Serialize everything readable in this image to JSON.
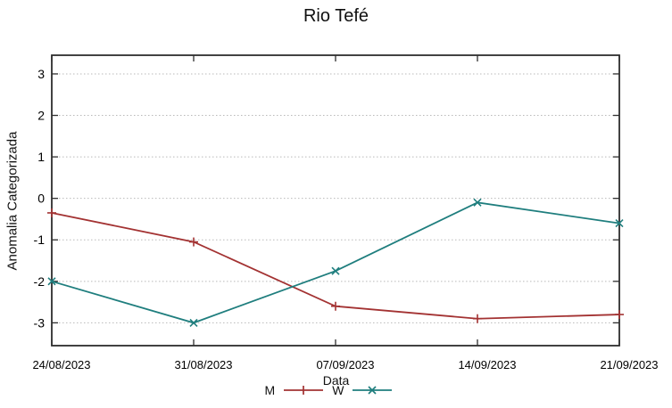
{
  "chart_data": {
    "type": "line",
    "title": "Rio Tefé",
    "xlabel": "Data",
    "ylabel": "Anomalia Categorizada",
    "categories": [
      "24/08/2023",
      "31/08/2023",
      "07/09/2023",
      "14/09/2023",
      "21/09/2023"
    ],
    "series": [
      {
        "name": "M",
        "color": "#a33232",
        "marker": "plus",
        "values": [
          -0.35,
          -1.05,
          -2.6,
          -2.9,
          -2.8
        ]
      },
      {
        "name": "W",
        "color": "#1f7e7e",
        "marker": "x",
        "values": [
          -2.0,
          -3.0,
          -1.75,
          -0.1,
          -0.6
        ]
      }
    ],
    "yticks": [
      -3,
      -2,
      -1,
      0,
      1,
      2,
      3
    ],
    "ylim": [
      -3.55,
      3.45
    ],
    "grid": true,
    "legend_position": "bottom-center",
    "colors": {
      "border": "#2e2e2e",
      "gridline": "#b9b9b9",
      "text": "#111111",
      "background": "#ffffff"
    }
  }
}
